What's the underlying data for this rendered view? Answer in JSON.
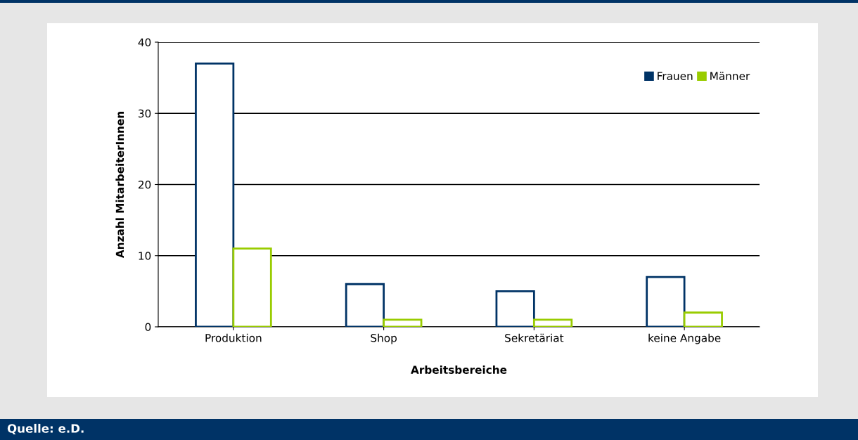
{
  "chart_data": {
    "type": "bar",
    "xlabel": "Arbeitsbereiche",
    "ylabel": "Anzahl MitarbeiterInnen",
    "categories": [
      "Produktion",
      "Shop",
      "Sekretäriat",
      "keine Angabe"
    ],
    "series": [
      {
        "name": "Frauen",
        "color": "#003366",
        "values": [
          37,
          6,
          5,
          7
        ]
      },
      {
        "name": "Männer",
        "color": "#99cc00",
        "values": [
          11,
          1,
          1,
          2
        ]
      }
    ],
    "ylim": [
      0,
      40
    ],
    "yticks": [
      0,
      10,
      20,
      30,
      40
    ],
    "grid": "y",
    "legend": "top right",
    "annotations": [
      "Quelle: e.D."
    ]
  }
}
